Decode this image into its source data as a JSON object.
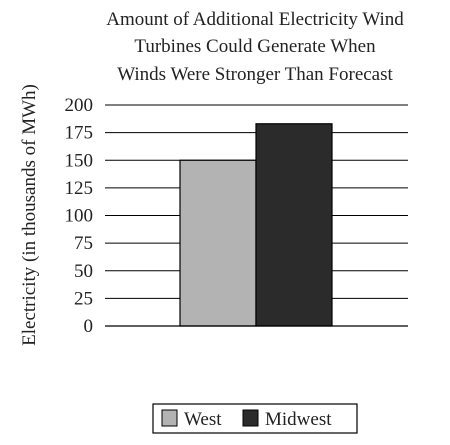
{
  "chart_data": {
    "type": "bar",
    "title_lines": [
      "Amount of Additional Electricity Wind",
      "Turbines Could Generate When",
      "Winds Were Stronger Than Forecast"
    ],
    "xlabel": "",
    "ylabel": "Electricity (in thousands of MWh)",
    "ylim": [
      0,
      200
    ],
    "yticks": [
      0,
      25,
      50,
      75,
      100,
      125,
      150,
      175,
      200
    ],
    "ytick_labels": [
      "0",
      "25",
      "50",
      "75",
      "100",
      "125",
      "150",
      "175",
      "200"
    ],
    "grid": true,
    "legend_position": "bottom",
    "series": [
      {
        "name": "West",
        "values": [
          150
        ],
        "color": "#b3b3b3"
      },
      {
        "name": "Midwest",
        "values": [
          183
        ],
        "color": "#2b2b2b"
      }
    ]
  }
}
